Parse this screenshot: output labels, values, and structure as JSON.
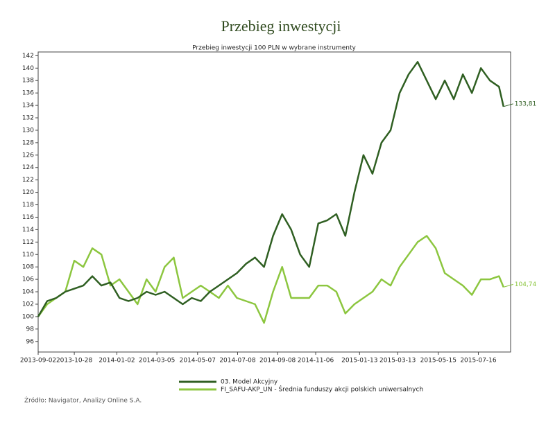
{
  "chart_data": {
    "type": "line",
    "title": "Przebieg inwestycji",
    "subtitle": "Przebieg inwestycji 100 PLN w wybrane instrumenty",
    "source": "Źródło: Navigator, Analizy Online S.A.",
    "x": [
      "2013-09-02",
      "2013-09-16",
      "2013-09-30",
      "2013-10-14",
      "2013-10-28",
      "2013-11-11",
      "2013-11-25",
      "2013-12-09",
      "2013-12-23",
      "2014-01-06",
      "2014-01-20",
      "2014-02-03",
      "2014-02-17",
      "2014-03-03",
      "2014-03-17",
      "2014-03-31",
      "2014-04-14",
      "2014-04-28",
      "2014-05-12",
      "2014-05-26",
      "2014-06-09",
      "2014-06-23",
      "2014-07-07",
      "2014-07-21",
      "2014-08-04",
      "2014-08-18",
      "2014-09-01",
      "2014-09-15",
      "2014-09-29",
      "2014-10-13",
      "2014-10-27",
      "2014-11-10",
      "2014-11-24",
      "2014-12-08",
      "2014-12-22",
      "2015-01-05",
      "2015-01-19",
      "2015-02-02",
      "2015-02-16",
      "2015-03-02",
      "2015-03-16",
      "2015-03-30",
      "2015-04-13",
      "2015-04-27",
      "2015-05-11",
      "2015-05-25",
      "2015-06-08",
      "2015-06-22",
      "2015-07-06",
      "2015-07-20",
      "2015-08-03",
      "2015-08-17",
      "2015-08-24"
    ],
    "series": [
      {
        "name": "03. Model Akcyjny",
        "color": "#2f5f22",
        "values": [
          100,
          102.5,
          103,
          104,
          104.5,
          105,
          106.5,
          105,
          105.5,
          103,
          102.5,
          103,
          104,
          103.5,
          104,
          103,
          102,
          103,
          102.5,
          104,
          105,
          106,
          107,
          108.5,
          109.5,
          108,
          113,
          116.5,
          114,
          110,
          108,
          115,
          115.5,
          116.5,
          113,
          120,
          126,
          123,
          128,
          130,
          136,
          139,
          141,
          138,
          135,
          138,
          135,
          139,
          136,
          140,
          138,
          137,
          133.81
        ],
        "value_labels": [
          null,
          null,
          null,
          null,
          null,
          null,
          null,
          null,
          null,
          null,
          null,
          null,
          null,
          null,
          null,
          null,
          null,
          null,
          null,
          null,
          null,
          null,
          null,
          null,
          null,
          null,
          null,
          null,
          null,
          null,
          null,
          null,
          null,
          null,
          null,
          null,
          null,
          null,
          null,
          null,
          null,
          null,
          null,
          null,
          null,
          null,
          null,
          null,
          null,
          null,
          null,
          null,
          "133,81"
        ]
      },
      {
        "name": "FI_SAFU-AKP_UN - Średnia funduszy akcji polskich uniwersalnych",
        "color": "#8cc63f",
        "values": [
          100,
          102,
          103,
          104,
          109,
          108,
          111,
          110,
          105,
          106,
          104,
          102,
          106,
          104,
          108,
          109.5,
          103,
          104,
          105,
          104,
          103,
          105,
          103,
          102.5,
          102,
          99,
          104,
          108,
          103,
          103,
          103,
          105,
          105,
          104,
          100.5,
          102,
          103,
          104,
          106,
          105,
          108,
          110,
          112,
          113,
          111,
          107,
          106,
          105,
          103.5,
          106,
          106,
          106.5,
          104.74
        ],
        "value_labels": [
          null,
          null,
          null,
          null,
          null,
          null,
          null,
          null,
          null,
          null,
          null,
          null,
          null,
          null,
          null,
          null,
          null,
          null,
          null,
          null,
          null,
          null,
          null,
          null,
          null,
          null,
          null,
          null,
          null,
          null,
          null,
          null,
          null,
          null,
          null,
          null,
          null,
          null,
          null,
          null,
          null,
          null,
          null,
          null,
          null,
          null,
          null,
          null,
          null,
          null,
          null,
          null,
          "104,74"
        ]
      }
    ],
    "xlim": [
      "2013-09-02",
      "2015-09-04"
    ],
    "xticks": [
      "2013-09-02",
      "2013-10-28",
      "2014-01-02",
      "2014-03-05",
      "2014-05-07",
      "2014-07-08",
      "2014-09-08",
      "2014-11-06",
      "2015-01-13",
      "2015-03-13",
      "2015-05-15",
      "2015-07-16"
    ],
    "ylim": [
      94.3,
      142.6
    ],
    "yticks": [
      96,
      98,
      100,
      102,
      104,
      106,
      108,
      110,
      112,
      114,
      116,
      118,
      120,
      122,
      124,
      126,
      128,
      130,
      132,
      134,
      136,
      138,
      140,
      142
    ],
    "grid": false
  }
}
